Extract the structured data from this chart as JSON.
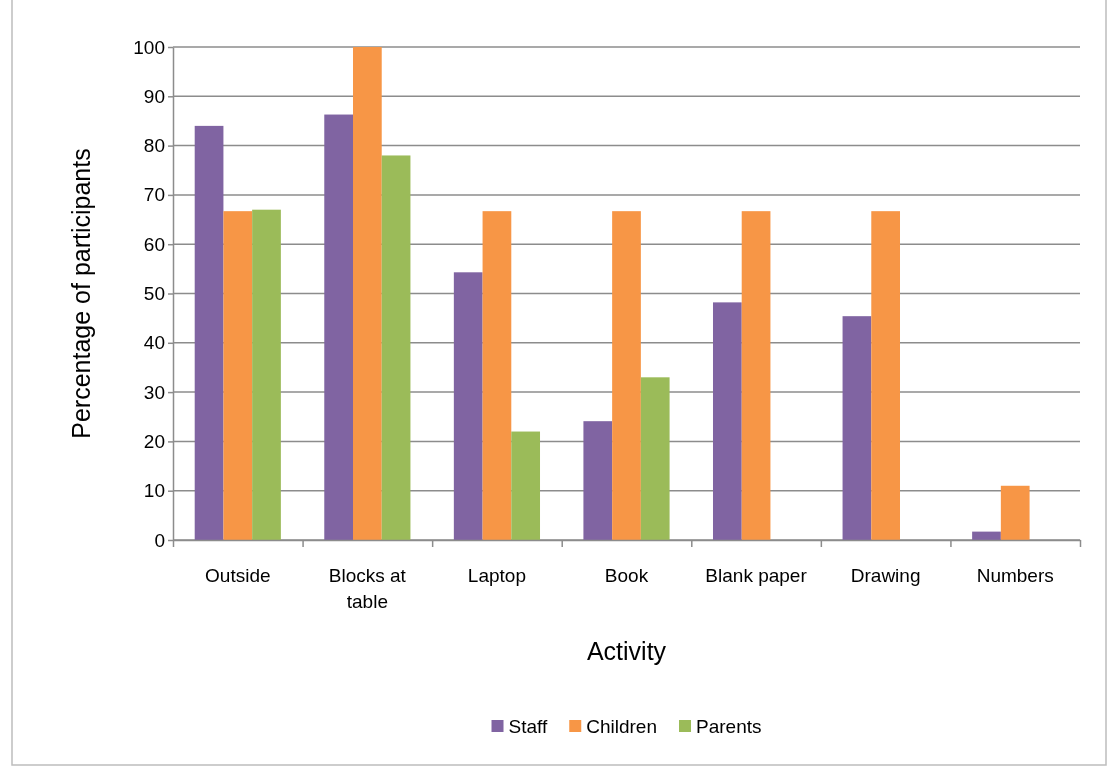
{
  "chart_data": {
    "type": "bar",
    "xlabel": "Activity",
    "ylabel": "Percentage of participants",
    "categories": [
      "Outside",
      "Blocks at table",
      "Laptop",
      "Book",
      "Blank paper",
      "Drawing",
      "Numbers"
    ],
    "series": [
      {
        "name": "Staff",
        "color": "#8064a2",
        "values": [
          84,
          86.3,
          54.3,
          24.1,
          48.2,
          45.4,
          1.7
        ]
      },
      {
        "name": "Children",
        "color": "#f79646",
        "values": [
          66.7,
          100,
          66.7,
          66.7,
          66.7,
          66.7,
          11
        ]
      },
      {
        "name": "Parents",
        "color": "#9bbb59",
        "values": [
          67,
          78,
          22,
          33,
          null,
          null,
          null
        ]
      }
    ],
    "ylim": [
      0,
      100
    ],
    "yticks": [
      0,
      10,
      20,
      30,
      40,
      50,
      60,
      70,
      80,
      90,
      100
    ],
    "grid": "y",
    "legend": "bottom"
  }
}
